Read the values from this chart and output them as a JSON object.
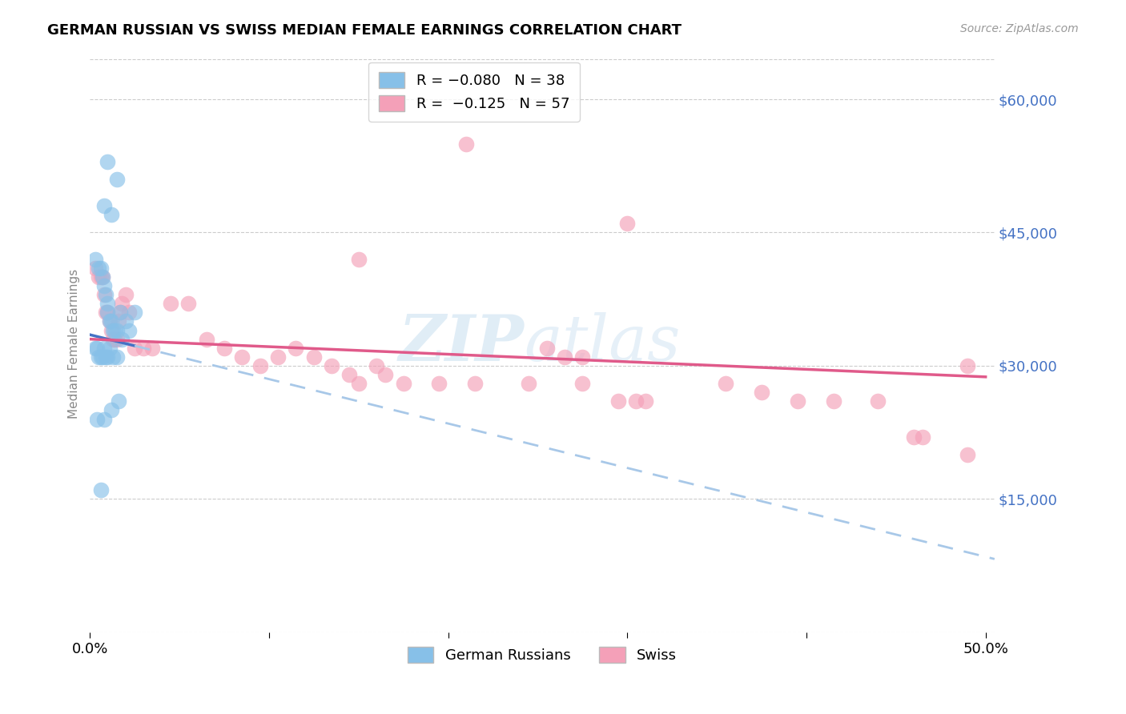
{
  "title": "GERMAN RUSSIAN VS SWISS MEDIAN FEMALE EARNINGS CORRELATION CHART",
  "source": "Source: ZipAtlas.com",
  "ylabel": "Median Female Earnings",
  "xlim": [
    0.0,
    0.505
  ],
  "ylim": [
    0,
    65000
  ],
  "yticks": [
    0,
    15000,
    30000,
    45000,
    60000
  ],
  "ytick_labels": [
    "",
    "$15,000",
    "$30,000",
    "$45,000",
    "$60,000"
  ],
  "xticks": [
    0.0,
    0.1,
    0.2,
    0.3,
    0.4,
    0.5
  ],
  "xtick_labels": [
    "0.0%",
    "",
    "",
    "",
    "",
    "50.0%"
  ],
  "blue_R": -0.08,
  "blue_N": 38,
  "pink_R": -0.125,
  "pink_N": 57,
  "blue_color": "#87c0e8",
  "pink_color": "#f4a0b8",
  "blue_line_color": "#4472C4",
  "pink_line_color": "#e05a8a",
  "dashed_line_color": "#a8c8e8",
  "blue_scatter_x": [
    0.01,
    0.015,
    0.008,
    0.012,
    0.003,
    0.005,
    0.006,
    0.007,
    0.008,
    0.009,
    0.01,
    0.01,
    0.011,
    0.012,
    0.013,
    0.014,
    0.015,
    0.017,
    0.018,
    0.02,
    0.022,
    0.025,
    0.003,
    0.004,
    0.005,
    0.006,
    0.007,
    0.008,
    0.009,
    0.01,
    0.011,
    0.013,
    0.015,
    0.004,
    0.008,
    0.012,
    0.016,
    0.006
  ],
  "blue_scatter_y": [
    53000,
    51000,
    48000,
    47000,
    42000,
    41000,
    41000,
    40000,
    39000,
    38000,
    37000,
    36000,
    35000,
    35000,
    34000,
    34000,
    34000,
    36000,
    33000,
    35000,
    34000,
    36000,
    32000,
    32000,
    31000,
    31000,
    31000,
    32000,
    31000,
    31000,
    32000,
    31000,
    31000,
    24000,
    24000,
    25000,
    26000,
    16000
  ],
  "pink_scatter_x": [
    0.003,
    0.005,
    0.006,
    0.007,
    0.008,
    0.009,
    0.01,
    0.011,
    0.012,
    0.013,
    0.014,
    0.015,
    0.016,
    0.017,
    0.018,
    0.02,
    0.022,
    0.025,
    0.03,
    0.035,
    0.045,
    0.055,
    0.065,
    0.075,
    0.085,
    0.095,
    0.105,
    0.115,
    0.125,
    0.135,
    0.145,
    0.15,
    0.16,
    0.165,
    0.175,
    0.195,
    0.215,
    0.245,
    0.275,
    0.295,
    0.305,
    0.31,
    0.255,
    0.265,
    0.275,
    0.355,
    0.375,
    0.395,
    0.415,
    0.44,
    0.46,
    0.465,
    0.49,
    0.3,
    0.15,
    0.21,
    0.49
  ],
  "pink_scatter_y": [
    41000,
    40000,
    40000,
    40000,
    38000,
    36000,
    36000,
    35000,
    34000,
    33000,
    33000,
    33000,
    35000,
    36000,
    37000,
    38000,
    36000,
    32000,
    32000,
    32000,
    37000,
    37000,
    33000,
    32000,
    31000,
    30000,
    31000,
    32000,
    31000,
    30000,
    29000,
    28000,
    30000,
    29000,
    28000,
    28000,
    28000,
    28000,
    28000,
    26000,
    26000,
    26000,
    32000,
    31000,
    31000,
    28000,
    27000,
    26000,
    26000,
    26000,
    22000,
    22000,
    20000,
    46000,
    42000,
    55000,
    30000
  ]
}
